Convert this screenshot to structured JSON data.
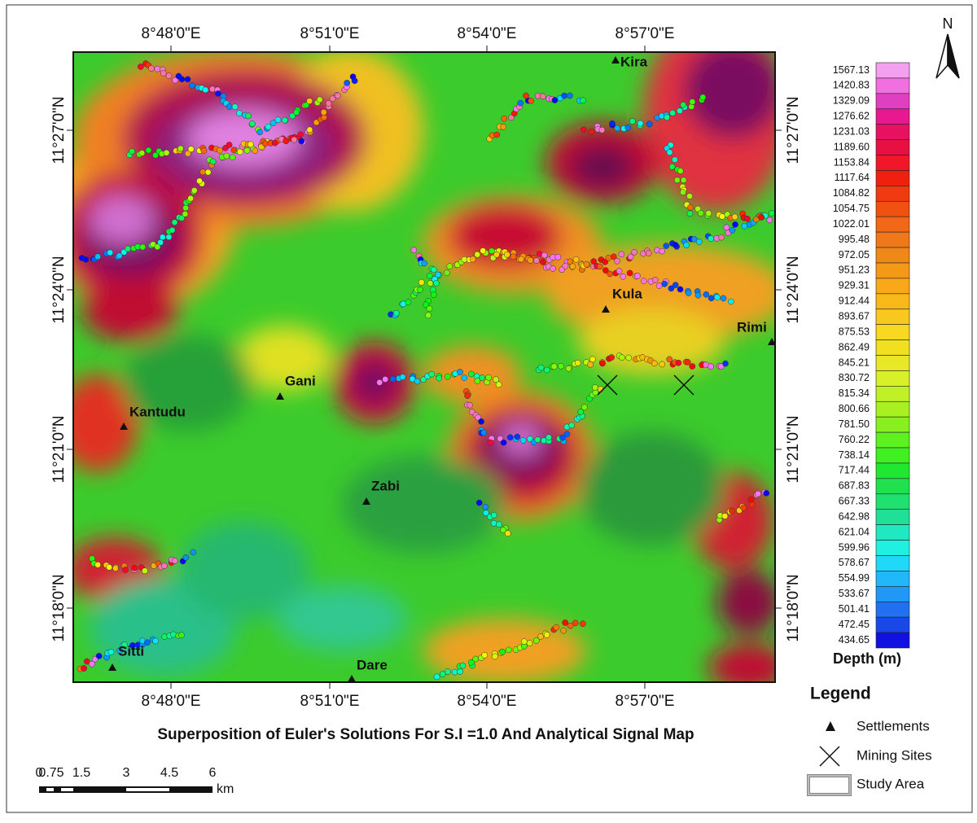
{
  "map": {
    "title": "Superposition of Euler's Solutions For S.I =1.0 And Analytical Signal Map",
    "north": "N",
    "longitude_labels": [
      "8°48'0\"E",
      "8°51'0\"E",
      "8°54'0\"E",
      "8°57'0\"E"
    ],
    "latitude_labels": [
      "11°27'0\"N",
      "11°24'0\"N",
      "11°21'0\"N",
      "11°18'0\"N"
    ],
    "settlements": [
      "Kira",
      "Kula",
      "Rimi",
      "Gani",
      "Kantudu",
      "Zabi",
      "Sitti",
      "Dare"
    ]
  },
  "depth_scale": {
    "title": "Depth (m)",
    "labels": [
      "1567.13",
      "1420.83",
      "1329.09",
      "1276.62",
      "1231.03",
      "1189.60",
      "1153.84",
      "1117.64",
      "1084.82",
      "1054.75",
      "1022.01",
      "995.48",
      "972.05",
      "951.23",
      "929.31",
      "912.44",
      "893.67",
      "875.53",
      "862.49",
      "845.21",
      "830.72",
      "815.34",
      "800.66",
      "781.50",
      "760.22",
      "738.14",
      "717.44",
      "687.83",
      "667.33",
      "642.98",
      "621.04",
      "599.96",
      "578.67",
      "554.99",
      "533.67",
      "501.41",
      "472.45",
      "434.65"
    ]
  },
  "legend": {
    "title": "Legend",
    "items": [
      "Settlements",
      "Mining Sites",
      "Study Area"
    ]
  },
  "scale_bar": {
    "labels": [
      "0",
      "0.75",
      "1.5",
      "3",
      "4.5",
      "6"
    ],
    "unit": "km"
  }
}
